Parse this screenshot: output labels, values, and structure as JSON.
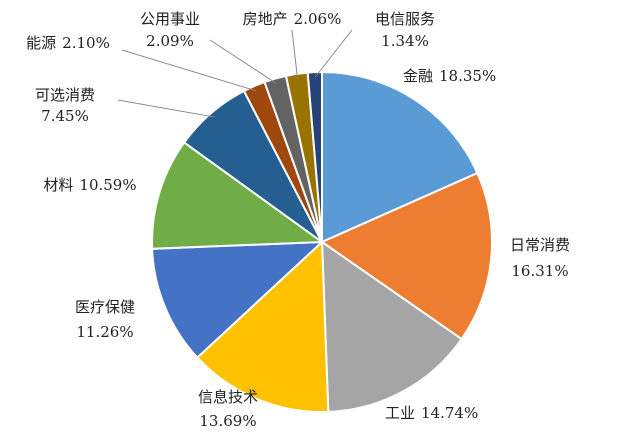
{
  "chart_data": {
    "type": "pie",
    "categories": [
      "金融",
      "日常消费",
      "工业",
      "信息技术",
      "医疗保健",
      "材料",
      "可选消费",
      "能源",
      "公用事业",
      "房地产",
      "电信服务"
    ],
    "values": [
      18.35,
      16.31,
      14.74,
      13.69,
      11.26,
      10.59,
      7.45,
      2.1,
      2.09,
      2.06,
      1.34
    ],
    "value_labels": [
      "18.35%",
      "16.31%",
      "14.74%",
      "13.69%",
      "11.26%",
      "10.59%",
      "7.45%",
      "2.10%",
      "2.09%",
      "2.06%",
      "1.34%"
    ],
    "colors": [
      "#5b9bd5",
      "#ed7d31",
      "#a5a5a5",
      "#ffc000",
      "#4472c4",
      "#70ad47",
      "#255e91",
      "#9e480e",
      "#636363",
      "#997300",
      "#264478"
    ]
  }
}
